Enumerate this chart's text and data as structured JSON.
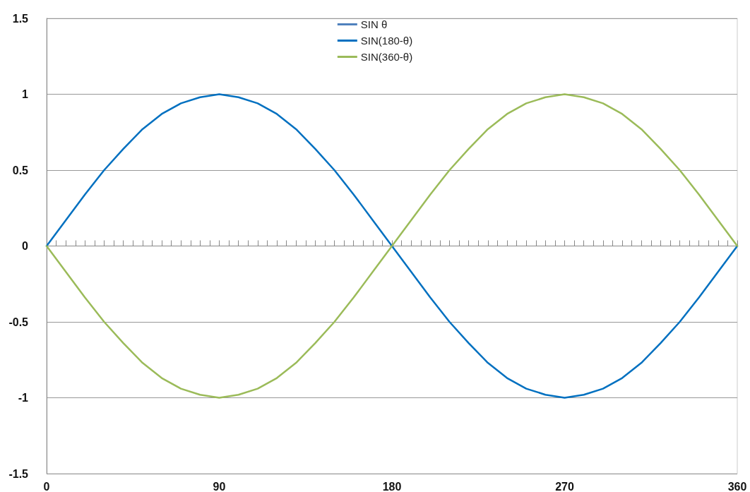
{
  "chart_data": {
    "type": "line",
    "x": [
      0,
      10,
      20,
      30,
      40,
      50,
      60,
      70,
      80,
      90,
      100,
      110,
      120,
      130,
      140,
      150,
      160,
      170,
      180,
      190,
      200,
      210,
      220,
      230,
      240,
      250,
      260,
      270,
      280,
      290,
      300,
      310,
      320,
      330,
      340,
      350,
      360
    ],
    "series": [
      {
        "name": "SIN θ",
        "color": "#4f81bd",
        "values": [
          null,
          null,
          null,
          null,
          null,
          null,
          null,
          null,
          null,
          null,
          null,
          null,
          null,
          null,
          null,
          null,
          null,
          null,
          null,
          null,
          null,
          null,
          null,
          null,
          null,
          null,
          null,
          null,
          null,
          null,
          null,
          null,
          null,
          null,
          null,
          null,
          null
        ]
      },
      {
        "name": "SIN(180-θ)",
        "color": "#0070c0",
        "values": [
          0,
          0.17,
          0.34,
          0.5,
          0.64,
          0.77,
          0.87,
          0.94,
          0.98,
          1,
          0.98,
          0.94,
          0.87,
          0.77,
          0.64,
          0.5,
          0.34,
          0.17,
          0,
          -0.17,
          -0.34,
          -0.5,
          -0.64,
          -0.77,
          -0.87,
          -0.94,
          -0.98,
          -1,
          -0.98,
          -0.94,
          -0.87,
          -0.77,
          -0.64,
          -0.5,
          -0.34,
          -0.17,
          0
        ]
      },
      {
        "name": "SIN(360-θ)",
        "color": "#9bbb59",
        "values": [
          0,
          -0.17,
          -0.34,
          -0.5,
          -0.64,
          -0.77,
          -0.87,
          -0.94,
          -0.98,
          -1,
          -0.98,
          -0.94,
          -0.87,
          -0.77,
          -0.64,
          -0.5,
          -0.34,
          -0.17,
          0,
          0.17,
          0.34,
          0.5,
          0.64,
          0.77,
          0.87,
          0.94,
          0.98,
          1,
          0.98,
          0.94,
          0.87,
          0.77,
          0.64,
          0.5,
          0.34,
          0.17,
          0
        ]
      }
    ],
    "xlim": [
      0,
      360
    ],
    "xticks": [
      0,
      {
        "value": 5,
        "label": null
      },
      {
        "value": 10,
        "label": null
      },
      {
        "value": 15,
        "label": null
      },
      {
        "value": 20,
        "label": null
      },
      {
        "value": 25,
        "label": null
      },
      {
        "value": 30,
        "label": null
      },
      {
        "value": 35,
        "label": null
      },
      {
        "value": 40,
        "label": null
      },
      {
        "value": 45,
        "label": null
      },
      {
        "value": 50,
        "label": null
      },
      {
        "value": 55,
        "label": null
      },
      {
        "value": 60,
        "label": null
      },
      {
        "value": 65,
        "label": null
      },
      {
        "value": 70,
        "label": null
      },
      {
        "value": 75,
        "label": null
      },
      {
        "value": 80,
        "label": null
      },
      {
        "value": 85,
        "label": null
      },
      90,
      {
        "value": 95,
        "label": null
      },
      {
        "value": 100,
        "label": null
      },
      {
        "value": 105,
        "label": null
      },
      {
        "value": 110,
        "label": null
      },
      {
        "value": 115,
        "label": null
      },
      {
        "value": 120,
        "label": null
      },
      {
        "value": 125,
        "label": null
      },
      {
        "value": 130,
        "label": null
      },
      {
        "value": 135,
        "label": null
      },
      {
        "value": 140,
        "label": null
      },
      {
        "value": 145,
        "label": null
      },
      {
        "value": 150,
        "label": null
      },
      {
        "value": 155,
        "label": null
      },
      {
        "value": 160,
        "label": null
      },
      {
        "value": 165,
        "label": null
      },
      {
        "value": 170,
        "label": null
      },
      {
        "value": 175,
        "label": null
      },
      180,
      {
        "value": 185,
        "label": null
      },
      {
        "value": 190,
        "label": null
      },
      {
        "value": 195,
        "label": null
      },
      {
        "value": 200,
        "label": null
      },
      {
        "value": 205,
        "label": null
      },
      {
        "value": 210,
        "label": null
      },
      {
        "value": 215,
        "label": null
      },
      {
        "value": 220,
        "label": null
      },
      {
        "value": 225,
        "label": null
      },
      {
        "value": 230,
        "label": null
      },
      {
        "value": 235,
        "label": null
      },
      {
        "value": 240,
        "label": null
      },
      {
        "value": 245,
        "label": null
      },
      {
        "value": 250,
        "label": null
      },
      {
        "value": 255,
        "label": null
      },
      {
        "value": 260,
        "label": null
      },
      {
        "value": 265,
        "label": null
      },
      270,
      {
        "value": 275,
        "label": null
      },
      {
        "value": 280,
        "label": null
      },
      {
        "value": 285,
        "label": null
      },
      {
        "value": 290,
        "label": null
      },
      {
        "value": 295,
        "label": null
      },
      {
        "value": 300,
        "label": null
      },
      {
        "value": 305,
        "label": null
      },
      {
        "value": 310,
        "label": null
      },
      {
        "value": 315,
        "label": null
      },
      {
        "value": 320,
        "label": null
      },
      {
        "value": 325,
        "label": null
      },
      {
        "value": 330,
        "label": null
      },
      {
        "value": 335,
        "label": null
      },
      {
        "value": 340,
        "label": null
      },
      {
        "value": 345,
        "label": null
      },
      {
        "value": 350,
        "label": null
      },
      {
        "value": 355,
        "label": null
      },
      360
    ],
    "ylim": [
      -1.5,
      1.5
    ],
    "yticks": [
      -1.5,
      -1,
      -0.5,
      0,
      0.5,
      1,
      1.5
    ],
    "grid": "y",
    "legend": "top",
    "marker": "none",
    "line_style": "solid"
  }
}
